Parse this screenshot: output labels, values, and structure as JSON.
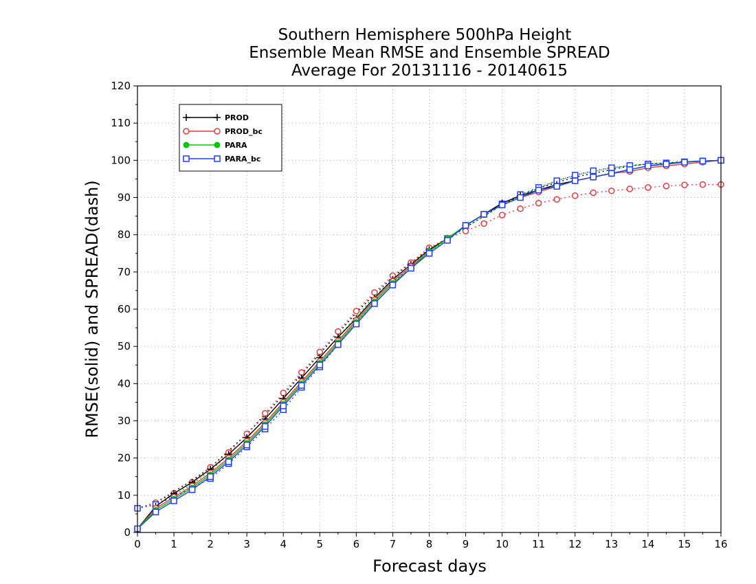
{
  "chart_data": {
    "type": "line",
    "title": [
      "Southern Hemisphere 500hPa Height",
      "Ensemble Mean RMSE and Ensemble SPREAD",
      "Average For 20131116 - 20140615"
    ],
    "xlabel": "Forecast days",
    "ylabel": "RMSE(solid) and SPREAD(dash)",
    "xlim": [
      0,
      16
    ],
    "ylim": [
      0,
      120
    ],
    "xticks": [
      "0",
      "1",
      "2",
      "3",
      "4",
      "5",
      "6",
      "7",
      "8",
      "9",
      "10",
      "11",
      "12",
      "13",
      "14",
      "15",
      "16"
    ],
    "yticks": [
      "0",
      "10",
      "20",
      "30",
      "40",
      "50",
      "60",
      "70",
      "80",
      "90",
      "100",
      "110",
      "120"
    ],
    "grid": true,
    "legend_position": "top-left",
    "x": [
      0,
      0.5,
      1,
      1.5,
      2,
      2.5,
      3,
      3.5,
      4,
      4.5,
      5,
      5.5,
      6,
      6.5,
      7,
      7.5,
      8,
      8.5,
      9,
      9.5,
      10,
      10.5,
      11,
      11.5,
      12,
      12.5,
      13,
      13.5,
      14,
      14.5,
      15,
      15.5,
      16
    ],
    "series": [
      {
        "name": "PROD",
        "color": "#000000",
        "marker": "plus",
        "style": "solid",
        "values": [
          1,
          7,
          10.5,
          13.5,
          17,
          21,
          25.5,
          30.5,
          36,
          41.5,
          47,
          52.5,
          57.5,
          63,
          68,
          72,
          76,
          79,
          82.5,
          85.5,
          88.5,
          90.5,
          92,
          93.5,
          94.5,
          95.5,
          96.5,
          97.5,
          98.5,
          99,
          99.5,
          99.8,
          100
        ]
      },
      {
        "name": "PROD_bc",
        "color": "#e8383d",
        "marker": "circle",
        "style": "solid",
        "values": [
          1,
          6.5,
          9.5,
          12.5,
          16,
          20,
          24.5,
          29.5,
          35,
          40.5,
          46,
          51.5,
          57,
          62.5,
          67.5,
          71.5,
          75.5,
          79,
          82.5,
          85.5,
          88,
          90,
          91.5,
          93,
          94.5,
          95.5,
          96.5,
          97,
          98,
          98.5,
          99,
          99.5,
          100
        ]
      },
      {
        "name": "PARA",
        "color": "#00c800",
        "marker": "dot",
        "style": "solid",
        "values": [
          1,
          6,
          9,
          12,
          15.5,
          19.5,
          24,
          29,
          34.5,
          40,
          45.5,
          51,
          56.5,
          62,
          67,
          71,
          75.5,
          79,
          82.5,
          85.5,
          88,
          90,
          92,
          93,
          94.5,
          95.5,
          96.5,
          97.5,
          98.5,
          99,
          99.5,
          99.8,
          100
        ]
      },
      {
        "name": "PARA_bc",
        "color": "#1e3cff",
        "marker": "square",
        "style": "solid",
        "values": [
          1,
          5.5,
          8.5,
          11.5,
          15,
          19,
          23.5,
          28.5,
          34,
          39.5,
          45,
          50.5,
          56,
          61.5,
          66.5,
          71,
          75,
          78.5,
          82.5,
          85.5,
          88,
          90,
          92,
          93,
          94.5,
          95.5,
          96.5,
          97.5,
          98.5,
          99,
          99.5,
          99.8,
          100
        ]
      },
      {
        "name": "PROD spread",
        "color": "#000000",
        "marker": "none",
        "style": "dash",
        "values": [
          6.5,
          8,
          11,
          14,
          17.5,
          22,
          26.5,
          31.5,
          37,
          42.5,
          48,
          53.5,
          59,
          64,
          68.5,
          72.5,
          76,
          79,
          82,
          85,
          88,
          90.5,
          92.5,
          94,
          95.5,
          96.5,
          97.5,
          98.5,
          99,
          99.3,
          99.6,
          99.8,
          100
        ]
      },
      {
        "name": "PROD_bc spread",
        "color": "#e8383d",
        "marker": "circle",
        "style": "dash",
        "values": [
          6.5,
          8,
          10.5,
          13.5,
          17.5,
          21.5,
          26.5,
          32,
          37.5,
          43,
          48.5,
          54,
          59.5,
          64.5,
          69,
          72.5,
          76.5,
          79,
          81,
          83,
          85.3,
          87,
          88.5,
          89.5,
          90.5,
          91.3,
          91.8,
          92.3,
          92.7,
          93.1,
          93.4,
          93.5,
          93.5
        ]
      },
      {
        "name": "PARA spread",
        "color": "#00c800",
        "marker": "none",
        "style": "dash",
        "values": [
          6.5,
          7.5,
          10,
          13,
          16.5,
          21,
          25.5,
          30.5,
          36,
          41.5,
          47,
          52.5,
          58,
          63.5,
          68,
          72,
          75.5,
          78.5,
          82,
          85,
          88,
          90.5,
          92.5,
          94.5,
          96,
          97,
          98,
          98.5,
          99,
          99.3,
          99.6,
          99.8,
          100
        ]
      },
      {
        "name": "PARA_bc spread",
        "color": "#1e3cff",
        "marker": "square",
        "style": "dash",
        "values": [
          6.5,
          7.5,
          9.5,
          12,
          14.5,
          18.5,
          23,
          27.8,
          33,
          39,
          44.5,
          50.5,
          56.3,
          62,
          67,
          71.5,
          75.5,
          79,
          82.5,
          85.5,
          88.3,
          90.8,
          92.7,
          94.5,
          96,
          97.2,
          98,
          98.6,
          99,
          99.3,
          99.6,
          99.8,
          100
        ]
      }
    ],
    "legend": [
      {
        "name": "PROD",
        "color": "#000000",
        "marker": "plus"
      },
      {
        "name": "PROD_bc",
        "color": "#e8383d",
        "marker": "circle"
      },
      {
        "name": "PARA",
        "color": "#00c800",
        "marker": "dot"
      },
      {
        "name": "PARA_bc",
        "color": "#1e3cff",
        "marker": "square"
      }
    ]
  }
}
